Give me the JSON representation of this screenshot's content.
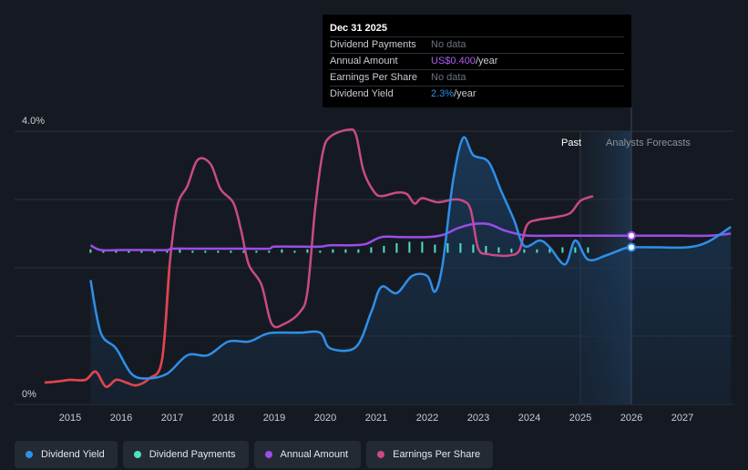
{
  "chart_data": {
    "type": "line",
    "x_ticks": [
      "2015",
      "2016",
      "2017",
      "2018",
      "2019",
      "2020",
      "2021",
      "2022",
      "2023",
      "2024",
      "2025",
      "2026",
      "2027"
    ],
    "y_ticks": [
      "0%",
      "4.0%"
    ],
    "y_left_range": [
      0,
      4.0
    ],
    "region_labels": {
      "past": "Past",
      "forecast": "Analysts Forecasts"
    },
    "series": [
      {
        "name": "Dividend Yield",
        "color": "#2f8fe9",
        "unit": "%",
        "points": [
          [
            2015.4,
            1.82
          ],
          [
            2015.6,
            1.05
          ],
          [
            2015.9,
            0.82
          ],
          [
            2016.2,
            0.45
          ],
          [
            2016.5,
            0.38
          ],
          [
            2016.9,
            0.45
          ],
          [
            2017.3,
            0.72
          ],
          [
            2017.7,
            0.72
          ],
          [
            2018.1,
            0.92
          ],
          [
            2018.5,
            0.92
          ],
          [
            2018.8,
            1.02
          ],
          [
            2019.0,
            1.05
          ],
          [
            2019.5,
            1.05
          ],
          [
            2019.9,
            1.05
          ],
          [
            2020.1,
            0.82
          ],
          [
            2020.6,
            0.84
          ],
          [
            2020.9,
            1.35
          ],
          [
            2021.1,
            1.72
          ],
          [
            2021.4,
            1.63
          ],
          [
            2021.7,
            1.88
          ],
          [
            2022.0,
            1.88
          ],
          [
            2022.15,
            1.65
          ],
          [
            2022.3,
            2.05
          ],
          [
            2022.5,
            3.25
          ],
          [
            2022.7,
            3.9
          ],
          [
            2022.9,
            3.65
          ],
          [
            2023.2,
            3.55
          ],
          [
            2023.45,
            3.12
          ],
          [
            2023.7,
            2.7
          ],
          [
            2023.9,
            2.32
          ],
          [
            2024.2,
            2.4
          ],
          [
            2024.4,
            2.3
          ],
          [
            2024.7,
            2.05
          ],
          [
            2024.9,
            2.4
          ],
          [
            2025.15,
            2.12
          ],
          [
            2025.5,
            2.18
          ],
          [
            2025.85,
            2.28
          ],
          [
            2026.0,
            2.3
          ],
          [
            2026.5,
            2.3
          ],
          [
            2027.1,
            2.3
          ],
          [
            2027.5,
            2.38
          ],
          [
            2027.95,
            2.6
          ]
        ]
      },
      {
        "name": "Dividend Payments",
        "color": "#4fe0c8",
        "unit": "relative",
        "points": [
          [
            2015.4,
            2.22
          ],
          [
            2015.65,
            2.22
          ],
          [
            2015.9,
            2.22
          ],
          [
            2016.15,
            2.22
          ],
          [
            2016.4,
            2.22
          ],
          [
            2016.65,
            2.22
          ],
          [
            2016.9,
            2.22
          ],
          [
            2017.15,
            2.22
          ],
          [
            2017.4,
            2.22
          ],
          [
            2017.65,
            2.22
          ],
          [
            2017.9,
            2.22
          ],
          [
            2018.15,
            2.22
          ],
          [
            2018.4,
            2.22
          ],
          [
            2018.65,
            2.22
          ],
          [
            2018.9,
            2.22
          ],
          [
            2019.15,
            2.22
          ],
          [
            2019.4,
            2.22
          ],
          [
            2019.65,
            2.22
          ],
          [
            2019.9,
            2.22
          ],
          [
            2020.15,
            2.22
          ],
          [
            2020.4,
            2.22
          ],
          [
            2020.65,
            2.22
          ],
          [
            2020.9,
            2.22
          ],
          [
            2021.15,
            2.22
          ],
          [
            2021.4,
            2.22
          ],
          [
            2021.65,
            2.22
          ],
          [
            2021.9,
            2.22
          ],
          [
            2022.15,
            2.22
          ],
          [
            2022.4,
            2.22
          ],
          [
            2022.65,
            2.22
          ],
          [
            2022.9,
            2.22
          ],
          [
            2023.15,
            2.22
          ],
          [
            2023.4,
            2.22
          ],
          [
            2023.65,
            2.22
          ],
          [
            2023.9,
            2.22
          ],
          [
            2024.15,
            2.22
          ],
          [
            2024.4,
            2.22
          ],
          [
            2024.65,
            2.22
          ],
          [
            2024.9,
            2.22
          ],
          [
            2025.15,
            2.22
          ]
        ],
        "heights": [
          0.05,
          0.03,
          0.03,
          0.03,
          0.03,
          0.03,
          0.03,
          0.05,
          0.03,
          0.03,
          0.03,
          0.03,
          0.03,
          0.03,
          0.03,
          0.05,
          0.03,
          0.05,
          0.03,
          0.05,
          0.05,
          0.05,
          0.08,
          0.1,
          0.14,
          0.16,
          0.16,
          0.12,
          0.14,
          0.14,
          0.12,
          0.1,
          0.08,
          0.06,
          0.05,
          0.05,
          0.06,
          0.08,
          0.08,
          0.08
        ]
      },
      {
        "name": "Annual Amount",
        "color": "#9b4de8",
        "unit": "relative",
        "points": [
          [
            2015.4,
            2.33
          ],
          [
            2015.6,
            2.26
          ],
          [
            2016.0,
            2.26
          ],
          [
            2016.5,
            2.26
          ],
          [
            2016.9,
            2.26
          ],
          [
            2017.0,
            2.28
          ],
          [
            2017.5,
            2.28
          ],
          [
            2018.0,
            2.28
          ],
          [
            2018.5,
            2.28
          ],
          [
            2018.9,
            2.28
          ],
          [
            2019.0,
            2.31
          ],
          [
            2019.5,
            2.31
          ],
          [
            2019.9,
            2.31
          ],
          [
            2020.1,
            2.33
          ],
          [
            2020.5,
            2.33
          ],
          [
            2020.8,
            2.35
          ],
          [
            2021.1,
            2.45
          ],
          [
            2021.5,
            2.45
          ],
          [
            2022.0,
            2.45
          ],
          [
            2022.3,
            2.48
          ],
          [
            2022.6,
            2.58
          ],
          [
            2022.9,
            2.64
          ],
          [
            2023.2,
            2.64
          ],
          [
            2023.5,
            2.55
          ],
          [
            2023.8,
            2.49
          ],
          [
            2024.0,
            2.47
          ],
          [
            2024.5,
            2.47
          ],
          [
            2025.0,
            2.47
          ],
          [
            2025.5,
            2.47
          ],
          [
            2026.0,
            2.47
          ],
          [
            2026.5,
            2.47
          ],
          [
            2027.0,
            2.47
          ],
          [
            2027.5,
            2.47
          ],
          [
            2027.95,
            2.5
          ]
        ]
      },
      {
        "name": "Earnings Per Share",
        "color": "#c94a86",
        "unit": "relative",
        "points": [
          [
            2014.5,
            0.32
          ],
          [
            2014.8,
            0.34
          ],
          [
            2015.0,
            0.36
          ],
          [
            2015.3,
            0.36
          ],
          [
            2015.5,
            0.48
          ],
          [
            2015.7,
            0.26
          ],
          [
            2015.9,
            0.36
          ],
          [
            2016.1,
            0.32
          ],
          [
            2016.3,
            0.28
          ],
          [
            2016.55,
            0.38
          ],
          [
            2016.8,
            0.65
          ],
          [
            2016.95,
            2.05
          ],
          [
            2017.1,
            2.9
          ],
          [
            2017.3,
            3.2
          ],
          [
            2017.5,
            3.58
          ],
          [
            2017.75,
            3.52
          ],
          [
            2017.95,
            3.15
          ],
          [
            2018.2,
            2.95
          ],
          [
            2018.35,
            2.55
          ],
          [
            2018.5,
            2.05
          ],
          [
            2018.75,
            1.75
          ],
          [
            2018.95,
            1.18
          ],
          [
            2019.2,
            1.18
          ],
          [
            2019.5,
            1.35
          ],
          [
            2019.65,
            1.65
          ],
          [
            2019.8,
            2.85
          ],
          [
            2019.95,
            3.68
          ],
          [
            2020.1,
            3.92
          ],
          [
            2020.45,
            4.02
          ],
          [
            2020.6,
            3.95
          ],
          [
            2020.75,
            3.42
          ],
          [
            2020.95,
            3.12
          ],
          [
            2021.1,
            3.05
          ],
          [
            2021.4,
            3.1
          ],
          [
            2021.6,
            3.08
          ],
          [
            2021.75,
            2.94
          ],
          [
            2021.9,
            3.02
          ],
          [
            2022.2,
            2.96
          ],
          [
            2022.5,
            3.0
          ],
          [
            2022.7,
            2.98
          ],
          [
            2022.85,
            2.85
          ],
          [
            2023.0,
            2.28
          ],
          [
            2023.2,
            2.2
          ],
          [
            2023.4,
            2.18
          ],
          [
            2023.6,
            2.18
          ],
          [
            2023.8,
            2.25
          ],
          [
            2023.95,
            2.62
          ],
          [
            2024.15,
            2.7
          ],
          [
            2024.5,
            2.74
          ],
          [
            2024.8,
            2.8
          ],
          [
            2025.0,
            2.98
          ],
          [
            2025.25,
            3.05
          ]
        ]
      }
    ],
    "markers": [
      {
        "series": "Annual Amount",
        "x": 2026.0,
        "y": 2.47
      },
      {
        "series": "Dividend Yield",
        "x": 2026.0,
        "y": 2.3
      }
    ],
    "highlight_date": 2026.0,
    "past_region": [
      2025.0,
      2026.0
    ]
  },
  "tooltip": {
    "title": "Dec 31 2025",
    "rows": [
      {
        "label": "Dividend Payments",
        "value": "No data",
        "color": "#6b7280"
      },
      {
        "label": "Annual Amount",
        "value_num": "US$0.400",
        "value_unit": "/year",
        "color": "#b15cf2"
      },
      {
        "label": "Earnings Per Share",
        "value": "No data",
        "color": "#6b7280"
      },
      {
        "label": "Dividend Yield",
        "value_num": "2.3%",
        "value_unit": "/year",
        "color": "#2f8fe9"
      }
    ]
  },
  "legend": [
    {
      "label": "Dividend Yield",
      "color": "#2f8fe9"
    },
    {
      "label": "Dividend Payments",
      "color": "#4fe0c8"
    },
    {
      "label": "Annual Amount",
      "color": "#9b4de8"
    },
    {
      "label": "Earnings Per Share",
      "color": "#c94a86"
    }
  ]
}
